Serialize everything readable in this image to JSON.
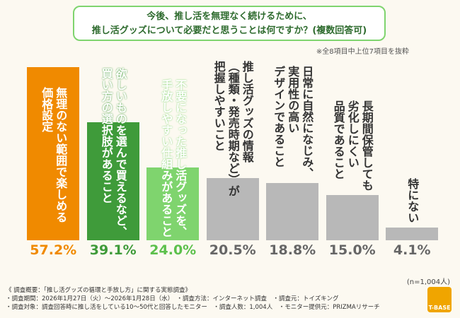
{
  "chart_data": {
    "type": "bar",
    "title": "今後、推し活を無理なく続けるために、\n推し活グッズについて必要だと思うことは何ですか？(複数回答可)",
    "note": "※全8項目中上位7項目を抜粋",
    "sample_size": "(n=1,004人)",
    "categories": [
      "無理のない範囲で楽しめる\n価格設定",
      "欲しいものを選んで買えるなど、\n買い方の選択肢があること",
      "不要になった推し活グッズを、\n手放しやすい仕組みがあること",
      "推し活グッズの情報\n（種類・発売時期など）が\n把握しやすいこと",
      "日常に自然になじみ、\n実用性の高い\nデザインであること",
      "長期間保管しても\n劣化しにくい\n品質であること",
      "特にない"
    ],
    "values": [
      57.2,
      39.1,
      24,
      20.5,
      18.8,
      15,
      4.1
    ],
    "value_labels": [
      "57.2%",
      "39.1%",
      "24.0%",
      "20.5%",
      "18.8%",
      "15.0%",
      "4.1%"
    ],
    "colors": [
      "#f08a00",
      "#3f9b3a",
      "#7fd46e",
      "#b8b8b8",
      "#b8b8b8",
      "#b8b8b8",
      "#b8b8b8"
    ],
    "label_colors": [
      "#f08a00",
      "#3f9b3a",
      "#5cc04c",
      "#666666",
      "#666666",
      "#666666",
      "#666666"
    ],
    "ylim": [
      0,
      60
    ]
  },
  "footer": [
    "《 調査概要：「推し活グッズの循環と手放し方」に関する実態調査》",
    "・調査期間：2026年1月27日（火）～2026年1月28日（水）　・調査方法：インターネット調査　・調査元：トイズキング",
    "・調査対象：調査回答時に推し活をしている10〜50代と回答したモニター　・調査人数：1,004人　・モニター提供元：PRIZMAリサーチ"
  ],
  "logo": "T-BASE"
}
